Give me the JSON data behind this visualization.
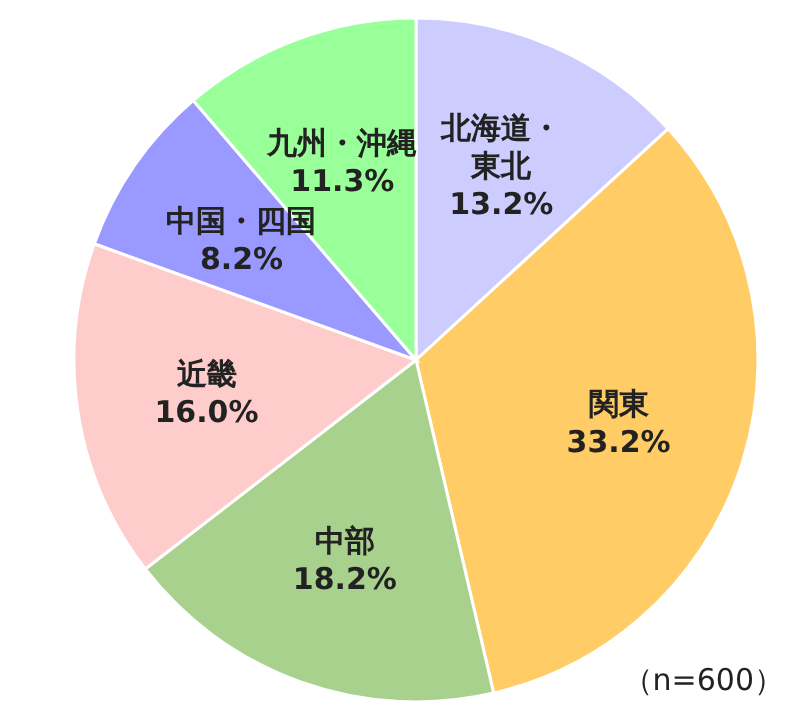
{
  "chart_data": {
    "type": "pie",
    "categories": [
      "北海道・東北",
      "関東",
      "中部",
      "近畿",
      "中国・四国",
      "九州・沖縄"
    ],
    "values": [
      13.2,
      33.2,
      18.2,
      16.0,
      8.2,
      11.3
    ],
    "value_labels": [
      "13.2%",
      "33.2%",
      "18.2%",
      "16.0%",
      "8.2%",
      "11.3%"
    ],
    "colors": [
      "#ccccff",
      "#ffcc66",
      "#a9d18e",
      "#ffcccc",
      "#9999ff",
      "#99ff99"
    ],
    "annotations": [
      "（n=600）"
    ],
    "legend": false
  }
}
